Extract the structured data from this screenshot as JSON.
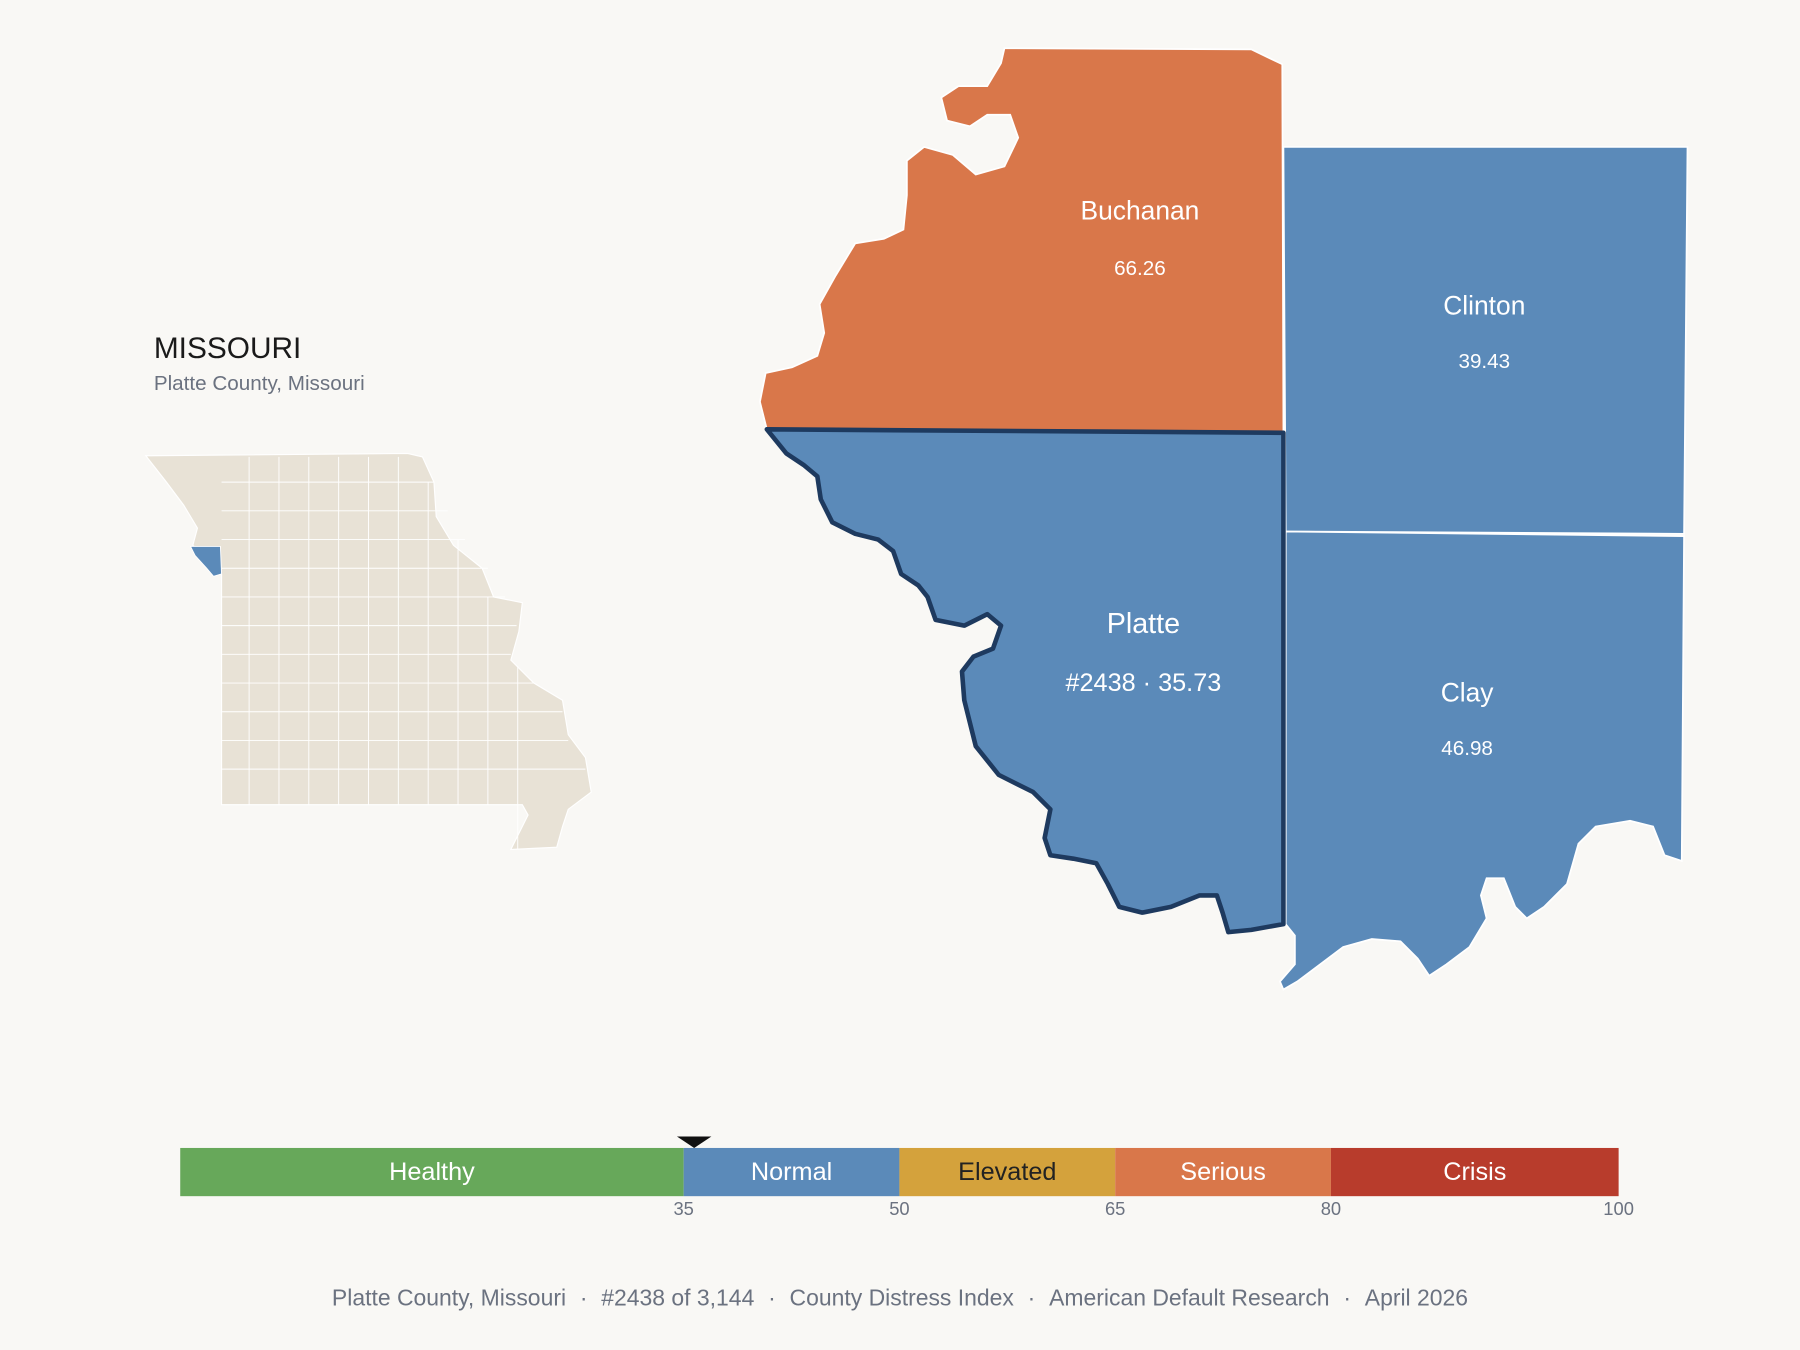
{
  "header": {
    "title": "MISSOURI",
    "subtitle": "Platte County, Missouri"
  },
  "counties": [
    {
      "name": "Buchanan",
      "value": 66.26
    },
    {
      "name": "Clinton",
      "value": 39.43
    },
    {
      "name": "Platte",
      "value": 35.73,
      "value_label": "#2438 · 35.73"
    },
    {
      "name": "Clay",
      "value": 46.98
    }
  ],
  "scale": {
    "xlim": [
      0,
      100
    ],
    "ticks": [
      35,
      50,
      65,
      80,
      100
    ],
    "bands": [
      {
        "name": "Healthy",
        "color": "#67a85a",
        "text_color": "#ffffff"
      },
      {
        "name": "Normal",
        "color": "#5b8ab9",
        "text_color": "#ffffff"
      },
      {
        "name": "Elevated",
        "color": "#d4a23c",
        "text_color": "#222222"
      },
      {
        "name": "Serious",
        "color": "#d9774a",
        "text_color": "#ffffff"
      },
      {
        "name": "Crisis",
        "color": "#b83c2c",
        "text_color": "#ffffff"
      }
    ]
  },
  "footer": {
    "items": [
      "Platte County, Missouri",
      "#2438 of 3,144",
      "County Distress Index",
      "American Default Research",
      "April 2026"
    ],
    "separator": "·"
  }
}
